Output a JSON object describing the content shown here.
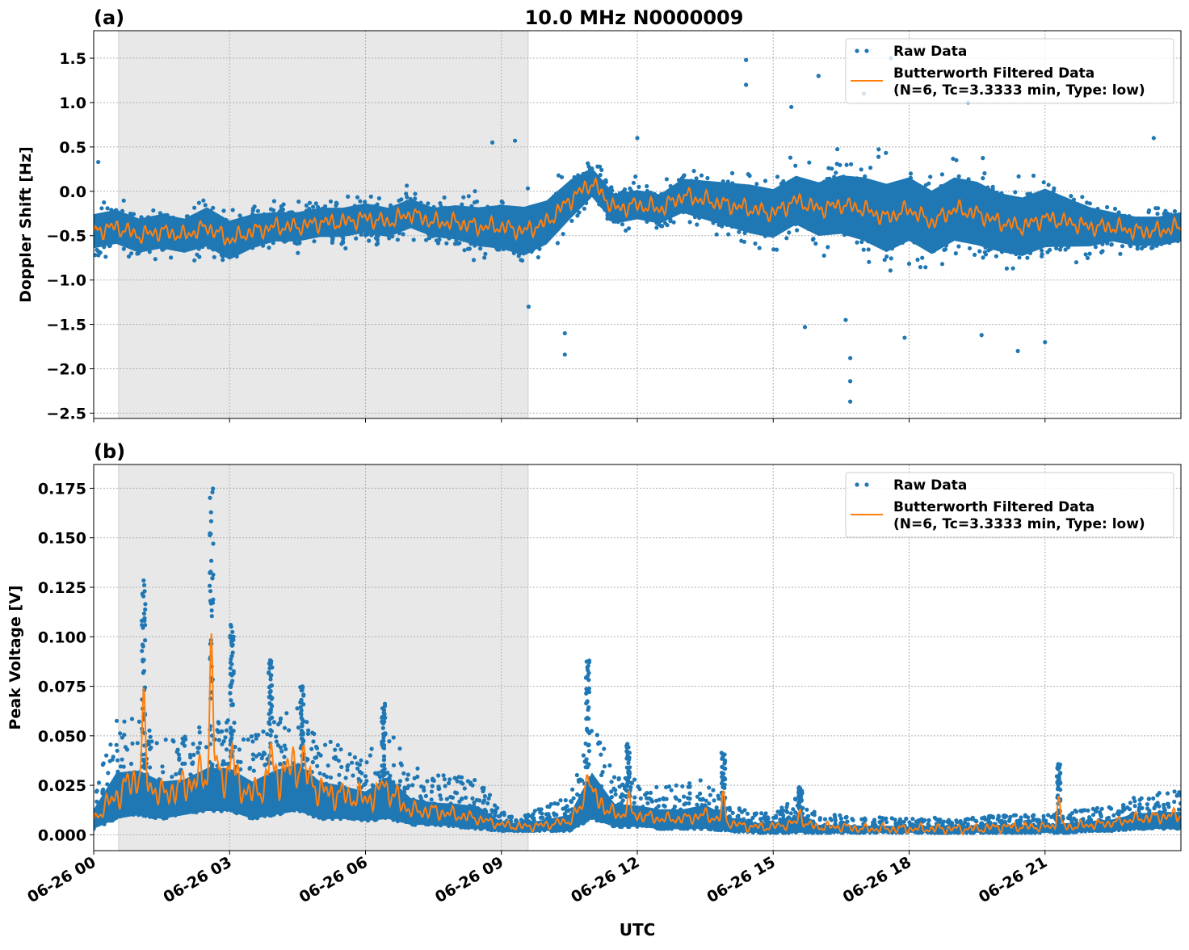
{
  "chart_data": {
    "title": "10.0 MHz N0000009",
    "xlabel": "UTC",
    "x_ticks": [
      "06-26 00",
      "06-26 03",
      "06-26 06",
      "06-26 09",
      "06-26 12",
      "06-26 15",
      "06-26 18",
      "06-26 21"
    ],
    "x_tick_hours": [
      0,
      3,
      6,
      9,
      12,
      15,
      18,
      21
    ],
    "xlim_hours": [
      0,
      24
    ],
    "shaded_region_hours": [
      0.55,
      9.59
    ],
    "grid": true,
    "legend": {
      "placement": "top-right",
      "raw": "Raw Data",
      "filtered_line1": "Butterworth Filtered Data",
      "filtered_line2": "(N=6, Tc=3.3333 min, Type: low)"
    },
    "colors": {
      "raw": "#1f77b4",
      "filtered": "#ff7f0e",
      "shade": "#e8e8e8"
    },
    "time_hours_step": 0.5,
    "panels": [
      {
        "label": "(a)",
        "type": "scatter+line",
        "ylabel": "Doppler Shift [Hz]",
        "ylim": [
          -2.56,
          1.81
        ],
        "y_ticks": [
          1.5,
          1.0,
          0.5,
          0.0,
          -0.5,
          -1.0,
          -1.5,
          -2.0,
          -2.5
        ],
        "y_tick_labels": [
          "1.5",
          "1.0",
          "0.5",
          "0.0",
          "−0.5",
          "−1.0",
          "−1.5",
          "−2.0",
          "−2.5"
        ],
        "filtered": [
          -0.45,
          -0.4,
          -0.5,
          -0.45,
          -0.5,
          -0.4,
          -0.55,
          -0.45,
          -0.4,
          -0.4,
          -0.35,
          -0.35,
          -0.3,
          -0.35,
          -0.25,
          -0.35,
          -0.35,
          -0.4,
          -0.4,
          -0.45,
          -0.35,
          -0.1,
          0.1,
          -0.2,
          -0.15,
          -0.2,
          -0.05,
          -0.1,
          -0.15,
          -0.2,
          -0.25,
          -0.1,
          -0.2,
          -0.15,
          -0.2,
          -0.3,
          -0.2,
          -0.35,
          -0.2,
          -0.25,
          -0.35,
          -0.4,
          -0.3,
          -0.35,
          -0.4,
          -0.4,
          -0.45,
          -0.45,
          -0.4
        ],
        "raw_halfwidth": [
          0.35,
          0.35,
          0.35,
          0.35,
          0.35,
          0.4,
          0.4,
          0.35,
          0.3,
          0.3,
          0.3,
          0.3,
          0.3,
          0.3,
          0.3,
          0.3,
          0.35,
          0.4,
          0.45,
          0.5,
          0.45,
          0.4,
          0.3,
          0.3,
          0.3,
          0.3,
          0.35,
          0.4,
          0.45,
          0.5,
          0.5,
          0.5,
          0.55,
          0.6,
          0.65,
          0.7,
          0.65,
          0.65,
          0.65,
          0.65,
          0.6,
          0.6,
          0.6,
          0.5,
          0.4,
          0.3,
          0.3,
          0.3,
          0.3
        ],
        "outliers": [
          [
            14.4,
            1.48
          ],
          [
            14.4,
            1.2
          ],
          [
            16.7,
            -2.37
          ],
          [
            16.7,
            -2.14
          ],
          [
            16.7,
            -1.88
          ],
          [
            16.6,
            -1.45
          ],
          [
            10.4,
            -1.84
          ],
          [
            10.4,
            -1.6
          ],
          [
            17.9,
            -1.65
          ],
          [
            21.0,
            -1.7
          ],
          [
            20.4,
            -1.8
          ],
          [
            19.6,
            -1.62
          ],
          [
            16.0,
            1.3
          ],
          [
            17.6,
            1.5
          ],
          [
            17.0,
            1.1
          ],
          [
            9.3,
            0.57
          ],
          [
            8.8,
            0.55
          ],
          [
            12.0,
            0.6
          ],
          [
            0.1,
            0.33
          ],
          [
            15.4,
            0.95
          ],
          [
            19.3,
            1.0
          ],
          [
            23.4,
            0.6
          ],
          [
            9.6,
            -1.3
          ],
          [
            15.7,
            -1.53
          ]
        ],
        "spikes": []
      },
      {
        "label": "(b)",
        "type": "scatter+line",
        "ylabel": "Peak Voltage [V]",
        "ylim": [
          -0.008,
          0.187
        ],
        "y_ticks": [
          0.175,
          0.15,
          0.125,
          0.1,
          0.075,
          0.05,
          0.025,
          0.0
        ],
        "y_tick_labels": [
          "0.175",
          "0.150",
          "0.125",
          "0.100",
          "0.075",
          "0.050",
          "0.025",
          "0.000"
        ],
        "filtered": [
          0.008,
          0.02,
          0.03,
          0.02,
          0.025,
          0.03,
          0.03,
          0.02,
          0.03,
          0.035,
          0.022,
          0.02,
          0.018,
          0.022,
          0.012,
          0.012,
          0.01,
          0.008,
          0.005,
          0.004,
          0.005,
          0.007,
          0.02,
          0.01,
          0.01,
          0.008,
          0.008,
          0.01,
          0.006,
          0.004,
          0.004,
          0.006,
          0.004,
          0.004,
          0.003,
          0.003,
          0.003,
          0.003,
          0.003,
          0.003,
          0.004,
          0.004,
          0.004,
          0.004,
          0.005,
          0.006,
          0.008,
          0.009,
          0.01
        ],
        "raw_low": [
          0.003,
          0.008,
          0.01,
          0.008,
          0.01,
          0.012,
          0.012,
          0.008,
          0.01,
          0.012,
          0.008,
          0.008,
          0.007,
          0.008,
          0.005,
          0.005,
          0.004,
          0.003,
          0.002,
          0.002,
          0.002,
          0.002,
          0.008,
          0.004,
          0.004,
          0.003,
          0.003,
          0.003,
          0.002,
          0.001,
          0.001,
          0.001,
          0.001,
          0.001,
          0.001,
          0.001,
          0.001,
          0.001,
          0.001,
          0.001,
          0.001,
          0.001,
          0.001,
          0.001,
          0.002,
          0.002,
          0.003,
          0.003,
          0.003
        ],
        "raw_high": [
          0.025,
          0.06,
          0.06,
          0.05,
          0.05,
          0.06,
          0.06,
          0.05,
          0.06,
          0.065,
          0.05,
          0.045,
          0.04,
          0.055,
          0.035,
          0.03,
          0.03,
          0.028,
          0.012,
          0.01,
          0.015,
          0.02,
          0.06,
          0.03,
          0.028,
          0.025,
          0.025,
          0.03,
          0.018,
          0.012,
          0.012,
          0.02,
          0.01,
          0.01,
          0.009,
          0.009,
          0.008,
          0.009,
          0.009,
          0.009,
          0.01,
          0.01,
          0.01,
          0.012,
          0.013,
          0.015,
          0.02,
          0.022,
          0.022
        ],
        "outliers": [],
        "spikes": [
          [
            1.1,
            0.13,
            0.065
          ],
          [
            2.6,
            0.178,
            0.1
          ],
          [
            3.05,
            0.106,
            0.045
          ],
          [
            3.9,
            0.089,
            0.043
          ],
          [
            4.6,
            0.075,
            0.04
          ],
          [
            6.4,
            0.067,
            0.03
          ],
          [
            10.9,
            0.088,
            0.037
          ],
          [
            11.8,
            0.046,
            0.02
          ],
          [
            13.9,
            0.042,
            0.02
          ],
          [
            15.6,
            0.025,
            0.012
          ],
          [
            21.3,
            0.036,
            0.019
          ]
        ]
      }
    ]
  }
}
